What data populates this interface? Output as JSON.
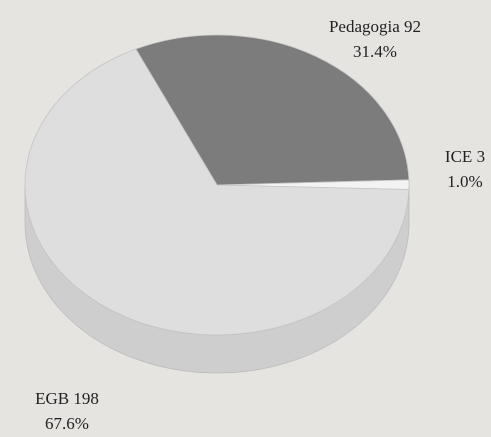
{
  "chart_data": {
    "type": "pie",
    "categories": [
      "Pedagogia",
      "ICE",
      "EGB"
    ],
    "values": [
      92,
      3,
      198
    ],
    "percentages": [
      31.4,
      1,
      67.6
    ],
    "percentage_labels": [
      "31.4%",
      "1.0%",
      "67.6%"
    ],
    "colors": [
      "#7c7c7c",
      "#f3f3f3",
      "#dedede"
    ]
  }
}
